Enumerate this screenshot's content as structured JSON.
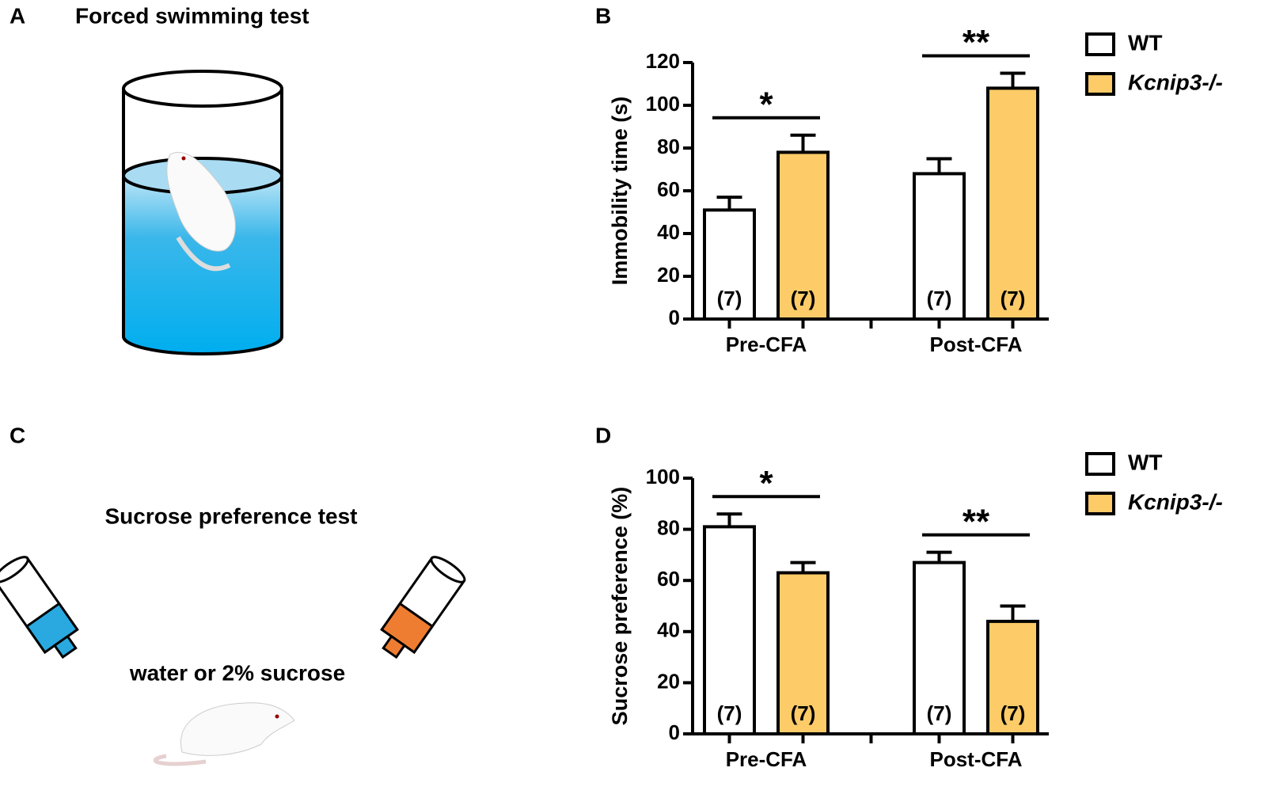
{
  "illustrations": [
    {
      "panel": "A",
      "title": "Forced swimming test"
    },
    {
      "panel": "C",
      "title": "Sucrose preference test",
      "caption": "water or 2% sucrose"
    }
  ],
  "chart_data": [
    {
      "type": "bar",
      "panel": "B",
      "y_label": "Immobility time (s)",
      "categories": [
        "Pre-CFA",
        "Post-CFA"
      ],
      "series": [
        {
          "name": "WT",
          "color": "#ffffff",
          "values": [
            51,
            68
          ],
          "errors": [
            6,
            7
          ],
          "n_labels": [
            "(7)",
            "(7)"
          ]
        },
        {
          "name": "Kcnip3-/-",
          "color": "#fdcb68",
          "values": [
            78,
            108
          ],
          "errors": [
            8,
            7
          ],
          "n_labels": [
            "(7)",
            "(7)"
          ]
        }
      ],
      "annotations": [
        {
          "text": "*",
          "category": 0
        },
        {
          "text": "**",
          "category": 1
        }
      ],
      "ylim": [
        0,
        120
      ],
      "yticks": [
        0,
        20,
        40,
        60,
        80,
        100,
        120
      ],
      "grid": false,
      "legend": "top-right"
    },
    {
      "type": "bar",
      "panel": "D",
      "y_label": "Sucrose preference (%)",
      "categories": [
        "Pre-CFA",
        "Post-CFA"
      ],
      "series": [
        {
          "name": "WT",
          "color": "#ffffff",
          "values": [
            81,
            67
          ],
          "errors": [
            5,
            4
          ],
          "n_labels": [
            "(7)",
            "(7)"
          ]
        },
        {
          "name": "Kcnip3-/-",
          "color": "#fdcb68",
          "values": [
            63,
            44
          ],
          "errors": [
            4,
            6
          ],
          "n_labels": [
            "(7)",
            "(7)"
          ]
        }
      ],
      "annotations": [
        {
          "text": "*",
          "category": 0
        },
        {
          "text": "**",
          "category": 1
        }
      ],
      "ylim": [
        0,
        100
      ],
      "yticks": [
        0,
        20,
        40,
        60,
        80,
        100
      ],
      "grid": false,
      "legend": "top-right"
    }
  ]
}
